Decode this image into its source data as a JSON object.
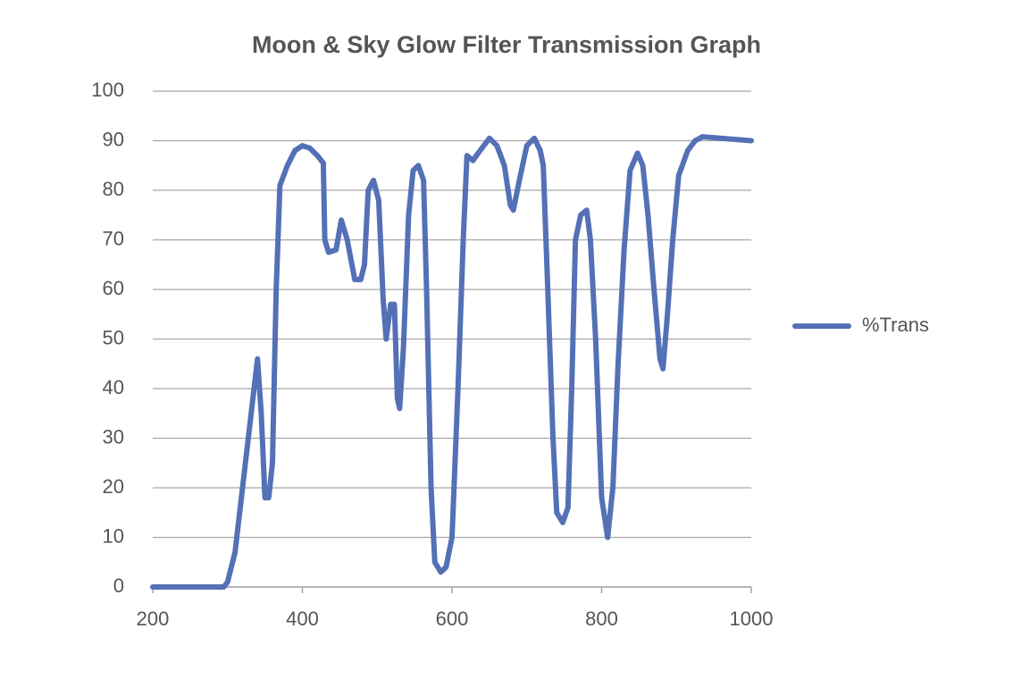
{
  "chart_data": {
    "type": "line",
    "title": "Moon & Sky Glow Filter Transmission Graph",
    "x": [
      200,
      295,
      300,
      310,
      320,
      330,
      340,
      345,
      350,
      355,
      360,
      365,
      370,
      380,
      390,
      400,
      410,
      420,
      428,
      430,
      435,
      445,
      452,
      460,
      470,
      478,
      483,
      488,
      495,
      502,
      508,
      512,
      518,
      523,
      527,
      530,
      535,
      542,
      548,
      555,
      562,
      566,
      572,
      577,
      585,
      592,
      600,
      608,
      615,
      620,
      628,
      635,
      650,
      660,
      670,
      678,
      682,
      690,
      700,
      710,
      718,
      722,
      728,
      735,
      740,
      748,
      755,
      760,
      765,
      772,
      780,
      785,
      792,
      800,
      808,
      815,
      822,
      830,
      838,
      848,
      855,
      862,
      870,
      878,
      882,
      888,
      895,
      903,
      915,
      925,
      935,
      1000
    ],
    "series": [
      {
        "name": "%Trans",
        "color": "#5470b6",
        "values": [
          0,
          0,
          1,
          7,
          20,
          33,
          46,
          35,
          18,
          18,
          25,
          60,
          81,
          85,
          88,
          89,
          88.5,
          87,
          85.5,
          70,
          67.5,
          68,
          74,
          70,
          62,
          62,
          65,
          80,
          82,
          78,
          58,
          50,
          57,
          57,
          38,
          36,
          48,
          75,
          84,
          85,
          82,
          60,
          20,
          5,
          3,
          4,
          10,
          40,
          70,
          87,
          86,
          87.5,
          90.5,
          89,
          85,
          77,
          76,
          82,
          89,
          90.5,
          88,
          85,
          60,
          30,
          15,
          13,
          16,
          40,
          70,
          75,
          76,
          70,
          50,
          18,
          10,
          20,
          45,
          68,
          84,
          87.5,
          85,
          75,
          60,
          46,
          44,
          55,
          70,
          83,
          88,
          90,
          90.8,
          90
        ]
      }
    ],
    "xlim": [
      200,
      1000
    ],
    "ylim": [
      0,
      100
    ],
    "xticks": [
      200,
      400,
      600,
      800,
      1000
    ],
    "yticks": [
      0,
      10,
      20,
      30,
      40,
      50,
      60,
      70,
      80,
      90,
      100
    ],
    "grid": true,
    "legend": "right"
  }
}
